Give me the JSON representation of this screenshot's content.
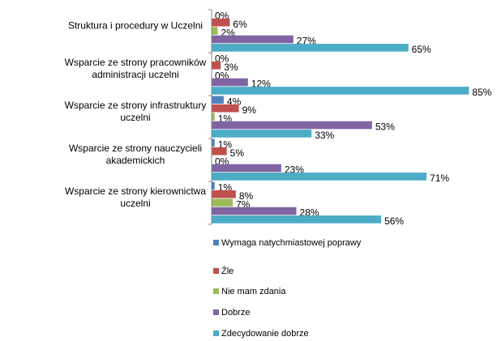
{
  "chart_data": {
    "type": "hbar",
    "categories": [
      "Struktura i procedury w Uczelni",
      "Wsparcie ze strony pracowników administracji uczelni",
      "Wsparcie ze strony infrastruktury uczelni",
      "Wsparcie ze strony nauczycieli akademickich",
      "Wsparcie ze strony kierownictwa uczelni"
    ],
    "series": [
      {
        "name": "Wymaga natychmiastowej poprawy",
        "color": "#4f81bd",
        "values": [
          0,
          0,
          4,
          1,
          1
        ],
        "value_labels": [
          "0%",
          "0%",
          "4%",
          "1%",
          "1%"
        ]
      },
      {
        "name": "Źle",
        "color": "#c0504d",
        "values": [
          6,
          3,
          9,
          5,
          8
        ],
        "value_labels": [
          "6%",
          "3%",
          "9%",
          "5%",
          "8%"
        ]
      },
      {
        "name": "Nie mam zdania",
        "color": "#9bbb59",
        "values": [
          2,
          0,
          1,
          0,
          7
        ],
        "value_labels": [
          "2%",
          "0%",
          "1%",
          "0%",
          "7%"
        ]
      },
      {
        "name": "Dobrze",
        "color": "#8064a2",
        "values": [
          27,
          12,
          53,
          23,
          28
        ],
        "value_labels": [
          "27%",
          "12%",
          "53%",
          "23%",
          "28%"
        ]
      },
      {
        "name": "Zdecydowanie dobrze",
        "color": "#4bacc6",
        "values": [
          65,
          85,
          33,
          71,
          56
        ],
        "value_labels": [
          "65%",
          "85%",
          "33%",
          "71%",
          "56%"
        ]
      }
    ],
    "xlim": [
      0,
      90
    ],
    "legend": "bottom"
  }
}
